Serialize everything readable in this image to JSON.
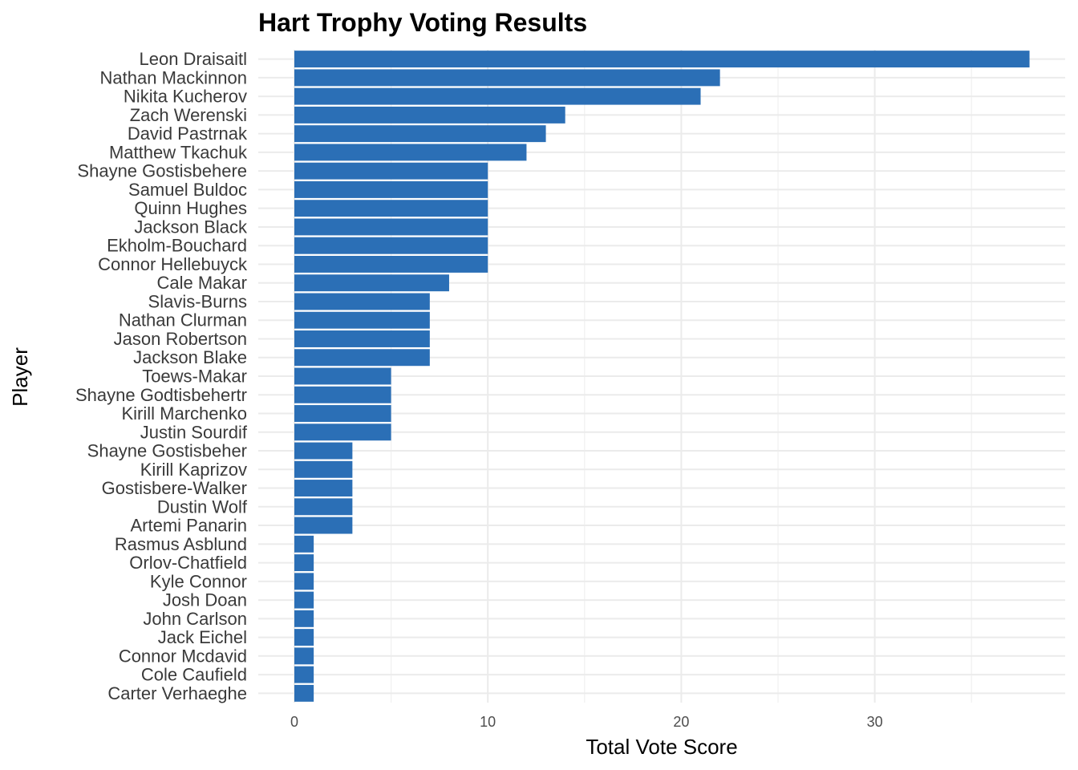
{
  "chart_data": {
    "type": "bar",
    "orientation": "horizontal",
    "title": "Hart Trophy Voting Results",
    "xlabel": "Total Vote Score",
    "ylabel": "Player",
    "xlim": [
      0,
      39.5
    ],
    "xticks": [
      0,
      10,
      20,
      30
    ],
    "grid": true,
    "bar_color": "#2B6FB6",
    "categories": [
      "Leon Draisaitl",
      "Nathan Mackinnon",
      "Nikita Kucherov",
      "Zach Werenski",
      "David Pastrnak",
      "Matthew Tkachuk",
      "Shayne Gostisbehere",
      "Samuel Buldoc",
      "Quinn Hughes",
      "Jackson Black",
      "Ekholm-Bouchard",
      "Connor Hellebuyck",
      "Cale Makar",
      "Slavis-Burns",
      "Nathan Clurman",
      "Jason Robertson",
      "Jackson Blake",
      "Toews-Makar",
      "Shayne Godtisbehertr",
      "Kirill Marchenko",
      "Justin Sourdif",
      "Shayne Gostisbeher",
      "Kirill Kaprizov",
      "Gostisbere-Walker",
      "Dustin Wolf",
      "Artemi Panarin",
      "Rasmus Asblund",
      "Orlov-Chatfield",
      "Kyle Connor",
      "Josh Doan",
      "John Carlson",
      "Jack Eichel",
      "Connor Mcdavid",
      "Cole Caufield",
      "Carter Verhaeghe"
    ],
    "values": [
      38,
      22,
      21,
      14,
      13,
      12,
      10,
      10,
      10,
      10,
      10,
      10,
      8,
      7,
      7,
      7,
      7,
      5,
      5,
      5,
      5,
      3,
      3,
      3,
      3,
      3,
      1,
      1,
      1,
      1,
      1,
      1,
      1,
      1,
      1
    ]
  }
}
